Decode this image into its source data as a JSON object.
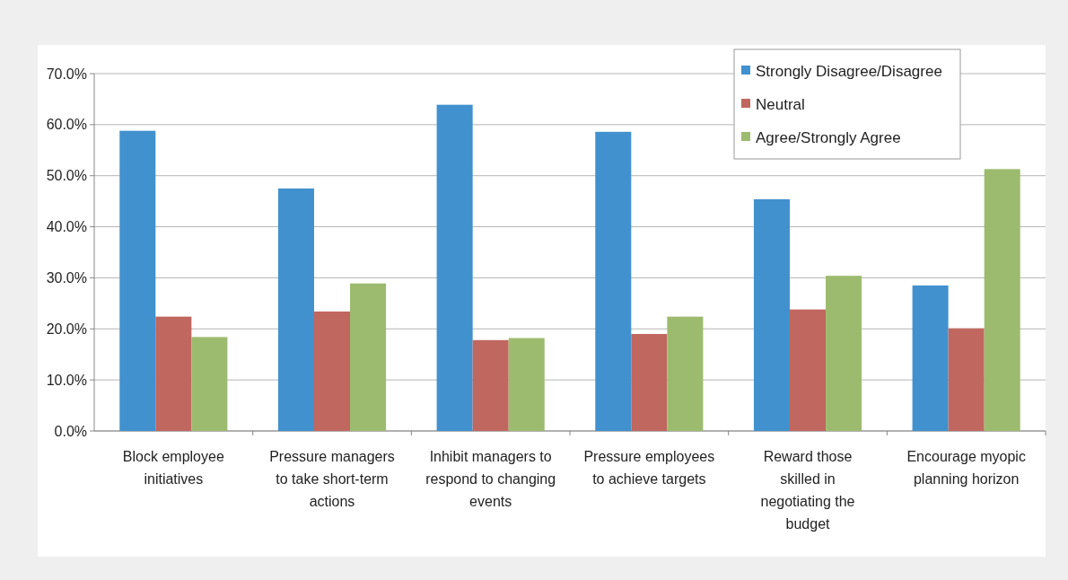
{
  "chart_data": {
    "type": "bar",
    "categories": [
      "Block employee initiatives",
      "Pressure managers to take short-term actions",
      "Inhibit managers to respond to changing events",
      "Pressure employees to achieve targets",
      "Reward those skilled in negotiating the budget",
      "Encourage myopic planning horizon"
    ],
    "series": [
      {
        "name": "Strongly Disagree/Disagree",
        "color": "#4191ce",
        "values": [
          58.8,
          47.5,
          63.9,
          58.6,
          45.4,
          28.5
        ]
      },
      {
        "name": "Neutral",
        "color": "#c0675f",
        "values": [
          22.4,
          23.4,
          17.8,
          19.0,
          23.8,
          20.1
        ]
      },
      {
        "name": "Agree/Strongly Agree",
        "color": "#9dbb6f",
        "values": [
          18.4,
          28.9,
          18.2,
          22.4,
          30.4,
          51.3
        ]
      }
    ],
    "ylim": [
      0,
      70
    ],
    "yticks": [
      {
        "value": 0,
        "label": "0.0%"
      },
      {
        "value": 10,
        "label": "10.0%"
      },
      {
        "value": 20,
        "label": "20.0%"
      },
      {
        "value": 30,
        "label": "30.0%"
      },
      {
        "value": 40,
        "label": "40.0%"
      },
      {
        "value": 50,
        "label": "50.0%"
      },
      {
        "value": 60,
        "label": "60.0%"
      },
      {
        "value": 70,
        "label": "70.0%"
      }
    ],
    "grid": "y",
    "legend": "top right"
  }
}
